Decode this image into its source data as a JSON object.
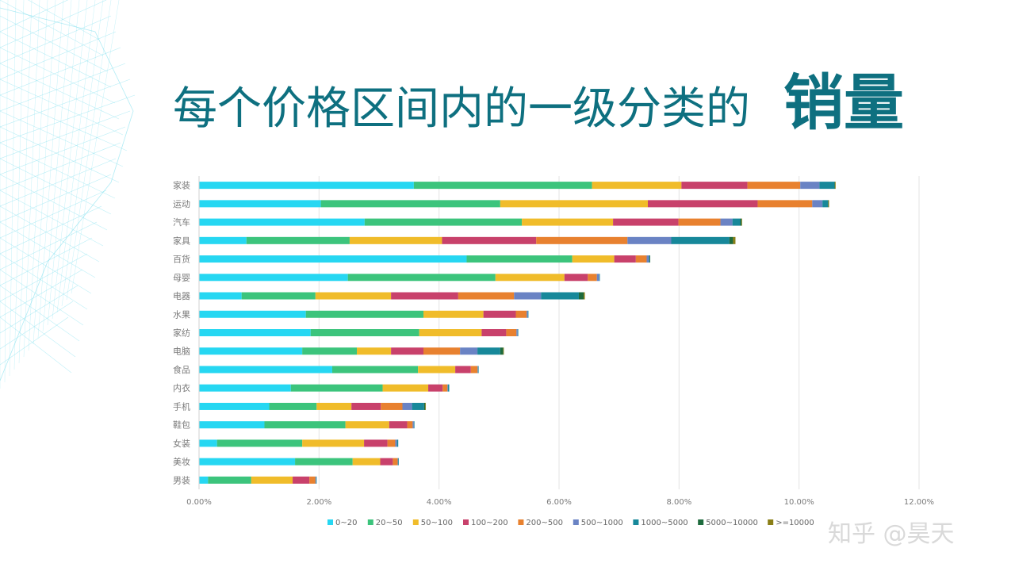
{
  "title": {
    "main": "每个价格区间内的一级分类的",
    "emphasis": "销量"
  },
  "watermark": "知乎 @昊天",
  "chart_data": {
    "type": "bar",
    "orientation": "horizontal",
    "stacked": true,
    "categories": [
      "家装",
      "运动",
      "汽车",
      "家具",
      "百货",
      "母婴",
      "电器",
      "水果",
      "家纺",
      "电脑",
      "食品",
      "内衣",
      "手机",
      "鞋包",
      "女装",
      "美妆",
      "男装"
    ],
    "xlim": [
      0,
      12
    ],
    "xticks": [
      0,
      2,
      4,
      6,
      8,
      10,
      12
    ],
    "xtick_labels": [
      "0.00%",
      "2.00%",
      "4.00%",
      "6.00%",
      "8.00%",
      "10.00%",
      "12.00%"
    ],
    "grid": "vertical",
    "legend_position": "bottom",
    "series": [
      {
        "name": "0~20",
        "color": "#26d7f2",
        "values": [
          3.58,
          2.03,
          2.76,
          0.79,
          4.46,
          2.48,
          0.71,
          1.78,
          1.86,
          1.72,
          2.22,
          1.53,
          1.17,
          1.09,
          0.3,
          1.6,
          0.15
        ]
      },
      {
        "name": "20~50",
        "color": "#3cc47c",
        "values": [
          2.97,
          2.99,
          2.62,
          1.72,
          1.76,
          2.46,
          1.23,
          1.96,
          1.81,
          0.91,
          1.43,
          1.53,
          0.79,
          1.35,
          1.42,
          0.96,
          0.72
        ]
      },
      {
        "name": "50~100",
        "color": "#f0bc2a",
        "values": [
          1.49,
          2.46,
          1.52,
          1.54,
          0.7,
          1.15,
          1.26,
          1.0,
          1.04,
          0.57,
          0.62,
          0.76,
          0.58,
          0.73,
          1.03,
          0.46,
          0.69
        ]
      },
      {
        "name": "100~200",
        "color": "#c8416b",
        "values": [
          1.1,
          1.83,
          1.09,
          1.57,
          0.36,
          0.39,
          1.12,
          0.54,
          0.41,
          0.54,
          0.26,
          0.24,
          0.49,
          0.3,
          0.39,
          0.21,
          0.28
        ]
      },
      {
        "name": "200~500",
        "color": "#e8812f",
        "values": [
          0.88,
          0.91,
          0.7,
          1.52,
          0.18,
          0.15,
          0.93,
          0.18,
          0.17,
          0.61,
          0.11,
          0.08,
          0.36,
          0.09,
          0.13,
          0.08,
          0.1
        ]
      },
      {
        "name": "500~1000",
        "color": "#6a83c4",
        "values": [
          0.32,
          0.17,
          0.2,
          0.73,
          0.04,
          0.04,
          0.45,
          0.02,
          0.02,
          0.29,
          0.01,
          0.01,
          0.16,
          0.02,
          0.03,
          0.01,
          0.01
        ]
      },
      {
        "name": "1000~5000",
        "color": "#17889a",
        "values": [
          0.25,
          0.09,
          0.13,
          0.97,
          0.01,
          0.01,
          0.63,
          0.01,
          0.01,
          0.38,
          0.01,
          0.02,
          0.2,
          0.01,
          0.02,
          0.01,
          0.01
        ]
      },
      {
        "name": "5000~10000",
        "color": "#1e6b3d",
        "values": [
          0.01,
          0.01,
          0.02,
          0.06,
          0.01,
          0.0,
          0.08,
          0.0,
          0.0,
          0.05,
          0.0,
          0.0,
          0.02,
          0.0,
          0.0,
          0.0,
          0.0
        ]
      },
      {
        "name": ">=10000",
        "color": "#8a7e16",
        "values": [
          0.01,
          0.01,
          0.01,
          0.04,
          0.0,
          0.0,
          0.02,
          0.0,
          0.0,
          0.01,
          0.0,
          0.0,
          0.01,
          0.0,
          0.0,
          0.0,
          0.0
        ]
      }
    ]
  }
}
